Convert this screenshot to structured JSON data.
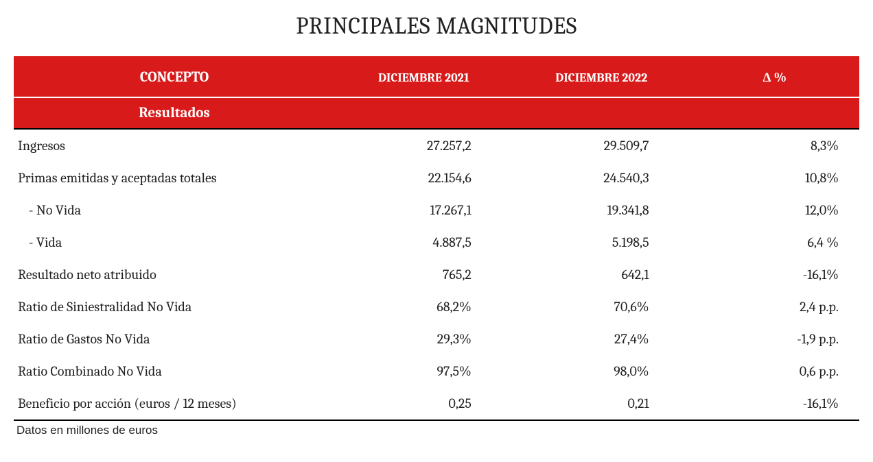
{
  "title": "PRINCIPALES MAGNITUDES",
  "colors": {
    "header_bg": "#d91a1a",
    "header_fg": "#ffffff",
    "text": "#222222",
    "background": "#ffffff",
    "rule": "#000000"
  },
  "typography": {
    "title_fontsize": 34,
    "header_fontsize": 19,
    "cell_fontsize": 20,
    "footnote_fontsize": 17,
    "font_family_main": "Cambria / Georgia serif",
    "font_family_footnote": "Arial sans-serif"
  },
  "layout": {
    "table_width_pct": 100,
    "col_widths_pct": [
      38,
      21,
      21,
      20
    ],
    "alignments": [
      "left",
      "right",
      "right",
      "right"
    ]
  },
  "headers": {
    "concept": "CONCEPTO",
    "col1": "DICIEMBRE 2021",
    "col2": "DICIEMBRE 2022",
    "delta": "Δ %"
  },
  "section": {
    "label": "Resultados"
  },
  "rows": [
    {
      "label": "Ingresos",
      "indent": false,
      "c1": "27.257,2",
      "c2": "29.509,7",
      "d": "8,3%"
    },
    {
      "label": "Primas emitidas y aceptadas totales",
      "indent": false,
      "c1": "22.154,6",
      "c2": "24.540,3",
      "d": "10,8%"
    },
    {
      "label": "- No Vida",
      "indent": true,
      "c1": "17.267,1",
      "c2": "19.341,8",
      "d": "12,0%"
    },
    {
      "label": "- Vida",
      "indent": true,
      "c1": "4.887,5",
      "c2": "5.198,5",
      "d": "6,4 %"
    },
    {
      "label": "Resultado neto atribuido",
      "indent": false,
      "c1": "765,2",
      "c2": "642,1",
      "d": "-16,1%"
    },
    {
      "label": "Ratio de Siniestralidad No Vida",
      "indent": false,
      "c1": "68,2%",
      "c2": "70,6%",
      "d": "2,4 p.p."
    },
    {
      "label": "Ratio de Gastos No Vida",
      "indent": false,
      "c1": "29,3%",
      "c2": "27,4%",
      "d": "-1,9 p.p."
    },
    {
      "label": "Ratio Combinado No Vida",
      "indent": false,
      "c1": "97,5%",
      "c2": "98,0%",
      "d": "0,6 p.p."
    },
    {
      "label": "Beneficio por acción (euros / 12 meses)",
      "indent": false,
      "c1": "0,25",
      "c2": "0,21",
      "d": "-16,1%"
    }
  ],
  "footnote": "Datos en millones de euros"
}
